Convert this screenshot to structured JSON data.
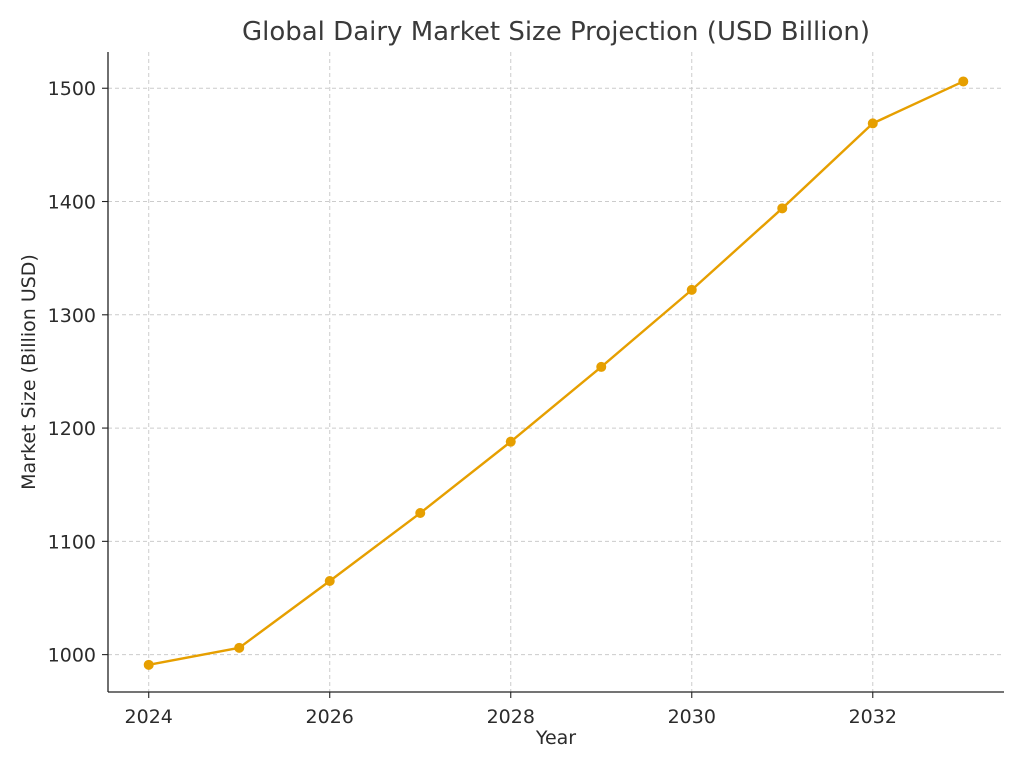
{
  "chart_data": {
    "type": "line",
    "title": "Global Dairy Market Size Projection (USD Billion)",
    "xlabel": "Year",
    "ylabel": "Market Size (Billion USD)",
    "x": [
      2024,
      2025,
      2026,
      2027,
      2028,
      2029,
      2030,
      2031,
      2032,
      2033
    ],
    "series": [
      {
        "values": [
          991,
          1006,
          1065,
          1125,
          1188,
          1254,
          1322,
          1394,
          1469,
          1506
        ],
        "color": "#E69F00",
        "marker": "circle"
      }
    ],
    "xlim": [
      2023.55,
      2033.45
    ],
    "ylim": [
      967,
      1532
    ],
    "xticks": [
      2024,
      2026,
      2028,
      2030,
      2032
    ],
    "yticks": [
      1000,
      1100,
      1200,
      1300,
      1400,
      1500
    ],
    "grid": true,
    "legend": "none"
  }
}
